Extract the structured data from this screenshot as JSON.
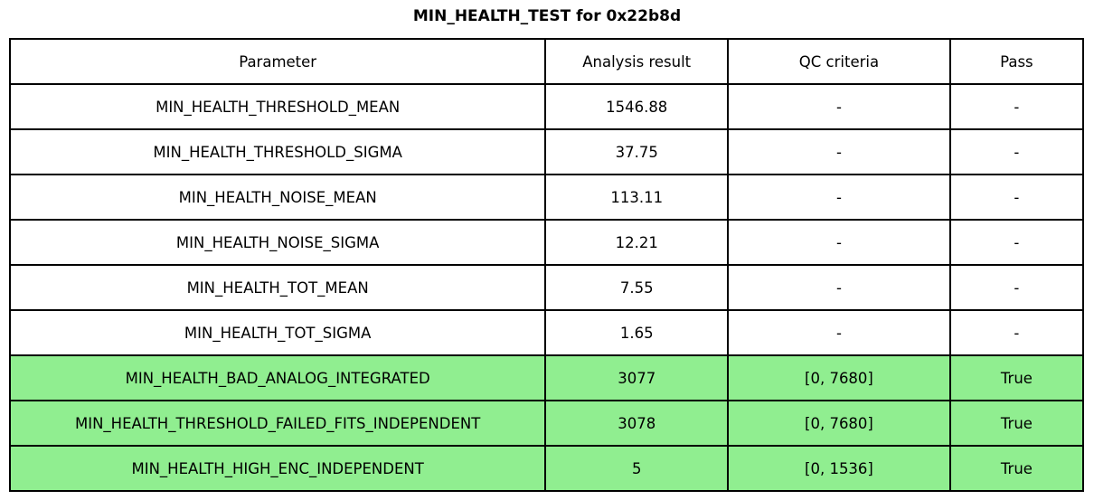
{
  "title": "MIN_HEALTH_TEST for 0x22b8d",
  "colors": {
    "pass_green": "#90EE90",
    "border": "#000000",
    "text": "#000000",
    "background": "#ffffff"
  },
  "table": {
    "headers": [
      "Parameter",
      "Analysis result",
      "QC criteria",
      "Pass"
    ],
    "rows": [
      {
        "parameter": "MIN_HEALTH_THRESHOLD_MEAN",
        "result": "1546.88",
        "qc": "-",
        "pass": "-",
        "highlight": false
      },
      {
        "parameter": "MIN_HEALTH_THRESHOLD_SIGMA",
        "result": "37.75",
        "qc": "-",
        "pass": "-",
        "highlight": false
      },
      {
        "parameter": "MIN_HEALTH_NOISE_MEAN",
        "result": "113.11",
        "qc": "-",
        "pass": "-",
        "highlight": false
      },
      {
        "parameter": "MIN_HEALTH_NOISE_SIGMA",
        "result": "12.21",
        "qc": "-",
        "pass": "-",
        "highlight": false
      },
      {
        "parameter": "MIN_HEALTH_TOT_MEAN",
        "result": "7.55",
        "qc": "-",
        "pass": "-",
        "highlight": false
      },
      {
        "parameter": "MIN_HEALTH_TOT_SIGMA",
        "result": "1.65",
        "qc": "-",
        "pass": "-",
        "highlight": false
      },
      {
        "parameter": "MIN_HEALTH_BAD_ANALOG_INTEGRATED",
        "result": "3077",
        "qc": "[0, 7680]",
        "pass": "True",
        "highlight": true
      },
      {
        "parameter": "MIN_HEALTH_THRESHOLD_FAILED_FITS_INDEPENDENT",
        "result": "3078",
        "qc": "[0, 7680]",
        "pass": "True",
        "highlight": true
      },
      {
        "parameter": "MIN_HEALTH_HIGH_ENC_INDEPENDENT",
        "result": "5",
        "qc": "[0, 1536]",
        "pass": "True",
        "highlight": true
      }
    ]
  }
}
